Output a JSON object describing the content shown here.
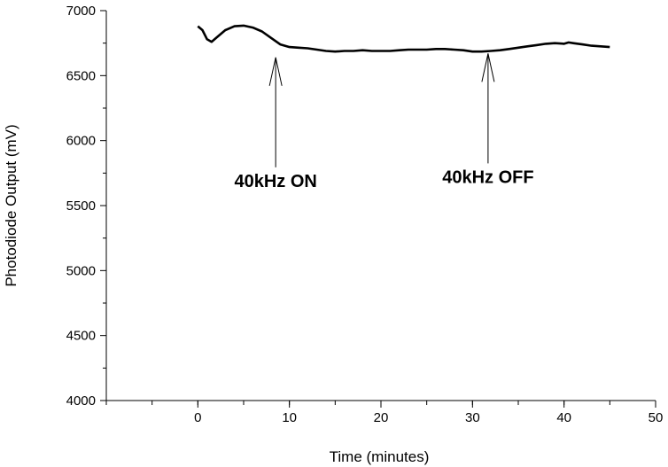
{
  "chart_data": {
    "type": "line",
    "title": "",
    "xlabel": "Time (minutes)",
    "ylabel": "Photodiode Output (mV)",
    "xlim": [
      -10,
      50
    ],
    "ylim": [
      4000,
      7000
    ],
    "x_ticks": [
      "0",
      "10",
      "20",
      "30",
      "40",
      "50"
    ],
    "y_ticks": [
      "4000",
      "4500",
      "5000",
      "5500",
      "6000",
      "6500",
      "7000"
    ],
    "grid": false,
    "line_color": "#000000",
    "series": [
      {
        "x": [
          0,
          0.5,
          1,
          1.5,
          2,
          3,
          4,
          5,
          6,
          7,
          8,
          9,
          10,
          11,
          12,
          13,
          14,
          15,
          16,
          17,
          18,
          19,
          20,
          21,
          22,
          23,
          24,
          25,
          26,
          27,
          28,
          29,
          30,
          31,
          32,
          33,
          34,
          35,
          36,
          37,
          38,
          39,
          40,
          40.5,
          41,
          42,
          43,
          44,
          45
        ],
        "y": [
          6880,
          6850,
          6780,
          6760,
          6790,
          6850,
          6880,
          6885,
          6870,
          6840,
          6790,
          6740,
          6720,
          6715,
          6710,
          6700,
          6690,
          6685,
          6690,
          6690,
          6695,
          6690,
          6690,
          6690,
          6695,
          6700,
          6700,
          6700,
          6705,
          6705,
          6700,
          6695,
          6685,
          6685,
          6690,
          6695,
          6705,
          6715,
          6725,
          6735,
          6745,
          6750,
          6745,
          6755,
          6750,
          6740,
          6730,
          6725,
          6720
        ]
      }
    ],
    "annotations": [
      {
        "text": "40kHz ON",
        "x": 8.5,
        "y": 6640
      },
      {
        "text": "40kHz OFF",
        "x": 31.7,
        "y": 6670
      }
    ]
  }
}
